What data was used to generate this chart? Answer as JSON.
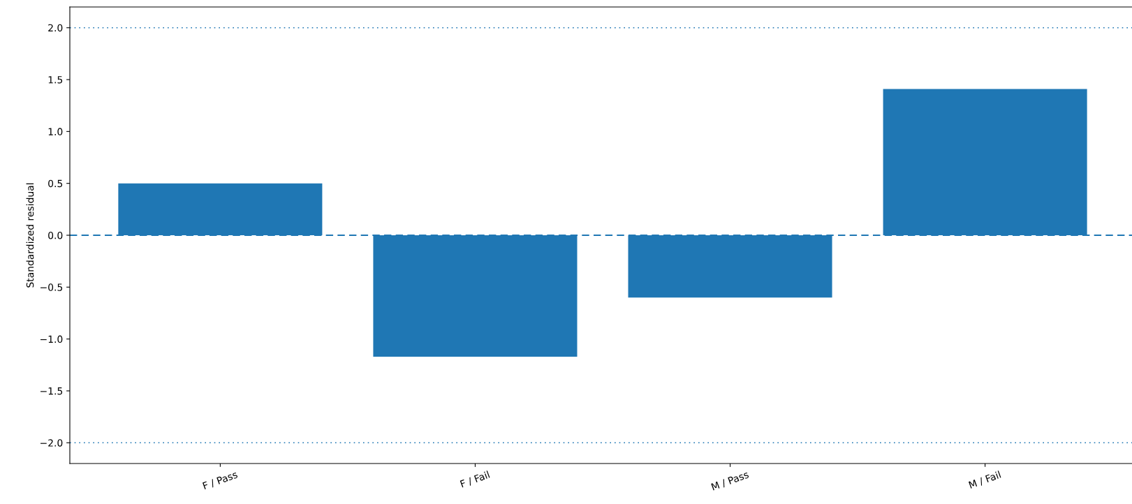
{
  "chart_data": {
    "type": "bar",
    "ylabel": "Standardized residual",
    "categories": [
      "F / Pass",
      "F / Fail",
      "M / Pass",
      "M / Fail"
    ],
    "values": [
      0.5,
      -1.17,
      -0.6,
      1.41
    ],
    "color": "#1f77b4",
    "ylim": [
      -2.2,
      2.2
    ],
    "yticks": [
      {
        "value": -2.0,
        "label": "−2.0"
      },
      {
        "value": -1.5,
        "label": "−1.5"
      },
      {
        "value": -1.0,
        "label": "−1.0"
      },
      {
        "value": -0.5,
        "label": "−0.5"
      },
      {
        "value": 0.0,
        "label": "0.0"
      },
      {
        "value": 0.5,
        "label": "0.5"
      },
      {
        "value": 1.0,
        "label": "1.0"
      },
      {
        "value": 1.5,
        "label": "1.5"
      },
      {
        "value": 2.0,
        "label": "2.0"
      }
    ],
    "ref_lines": [
      {
        "axis": "y",
        "value": 0,
        "color": "#1f77b4",
        "line_style": "dashed"
      },
      {
        "axis": "y",
        "value": 2,
        "color": "#1f77b4",
        "line_style": "dotted"
      },
      {
        "axis": "y",
        "value": -2,
        "color": "#1f77b4",
        "line_style": "dotted"
      }
    ],
    "grid": false
  }
}
